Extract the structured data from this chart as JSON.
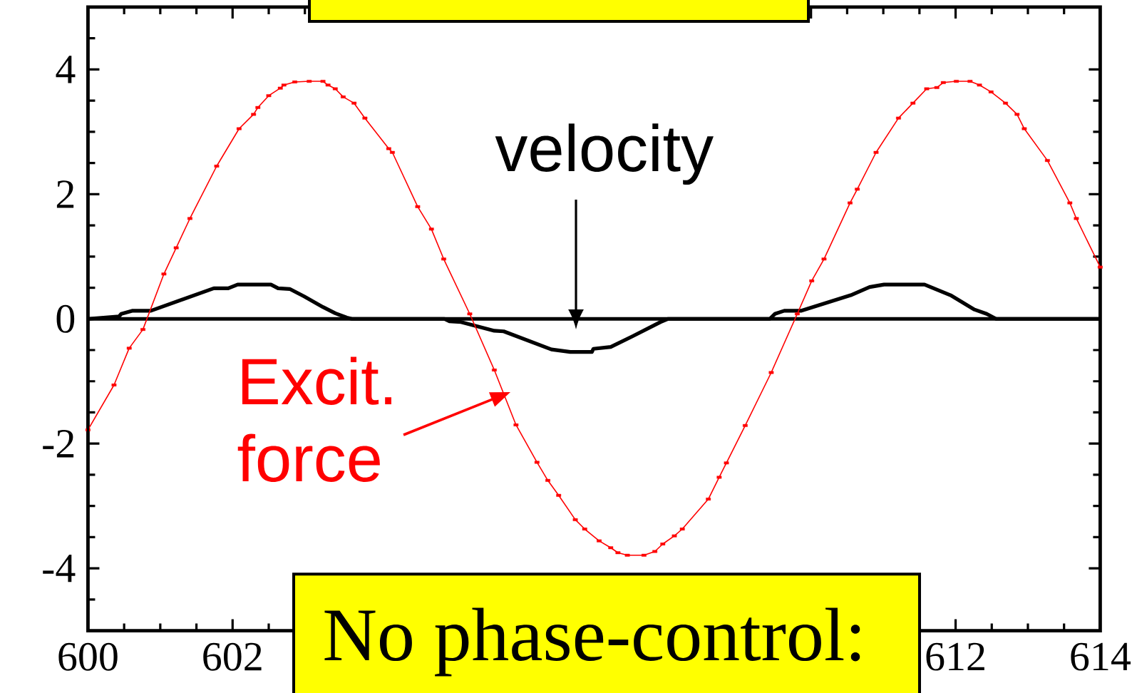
{
  "chart_data": {
    "type": "line",
    "xlim": [
      600,
      614
    ],
    "ylim": [
      -5,
      5
    ],
    "xticks": [
      600,
      602,
      {
        "value": 604,
        "label": null
      },
      {
        "value": 606,
        "label": null
      },
      {
        "value": 608,
        "label": null
      },
      {
        "value": 610,
        "label": null
      },
      612,
      614
    ],
    "yticks": [
      -4,
      -2,
      0,
      2,
      4
    ],
    "ref_lines": [
      {
        "axis": "y",
        "value": 0,
        "color": "#000000"
      }
    ],
    "series": [
      {
        "name": "velocity",
        "type": "line",
        "color": "#000000",
        "marker": "none",
        "x": [
          600.0,
          600.43,
          600.46,
          600.61,
          600.87,
          601.74,
          601.94,
          602.07,
          602.53,
          602.63,
          602.79,
          602.99,
          603.25,
          603.42,
          603.58,
          603.65,
          604.93,
          605.0,
          605.16,
          605.62,
          605.75,
          606.41,
          606.67,
          606.97,
          606.99,
          607.23,
          607.53,
          607.92,
          608.02,
          609.43,
          609.5,
          609.63,
          609.86,
          610.55,
          610.81,
          611.01,
          611.57,
          611.93,
          612.26,
          612.43,
          612.56,
          614.0
        ],
        "values": [
          0,
          0.04,
          0.08,
          0.13,
          0.13,
          0.49,
          0.49,
          0.55,
          0.55,
          0.49,
          0.48,
          0.36,
          0.19,
          0.09,
          0.02,
          0,
          0,
          -0.04,
          -0.05,
          -0.19,
          -0.2,
          -0.49,
          -0.53,
          -0.53,
          -0.48,
          -0.45,
          -0.28,
          -0.05,
          0,
          0,
          0.08,
          0.13,
          0.13,
          0.38,
          0.51,
          0.55,
          0.55,
          0.38,
          0.15,
          0.08,
          0,
          0
        ]
      },
      {
        "name": "Excit. force",
        "type": "line",
        "color": "#ff0000",
        "marker": "square",
        "x": [
          600.0,
          600.36,
          600.57,
          600.76,
          601.05,
          601.22,
          601.41,
          601.78,
          602.09,
          602.29,
          602.35,
          602.5,
          602.66,
          602.71,
          602.86,
          603.06,
          603.25,
          603.32,
          603.42,
          603.53,
          603.68,
          603.83,
          604.16,
          604.21,
          604.56,
          604.75,
          604.92,
          605.28,
          605.62,
          605.92,
          606.21,
          606.36,
          606.51,
          606.74,
          606.87,
          607.07,
          607.23,
          607.33,
          607.46,
          607.69,
          607.84,
          607.95,
          608.11,
          608.22,
          608.58,
          608.73,
          608.83,
          609.09,
          609.45,
          609.81,
          610.01,
          610.18,
          610.54,
          610.64,
          610.9,
          611.21,
          611.41,
          611.6,
          611.74,
          611.83,
          612.01,
          612.2,
          612.33,
          612.49,
          612.69,
          612.85,
          612.95,
          613.27,
          613.58,
          613.67,
          614.0
        ],
        "values": [
          -1.78,
          -1.06,
          -0.47,
          -0.17,
          0.72,
          1.14,
          1.61,
          2.45,
          3.05,
          3.28,
          3.39,
          3.58,
          3.7,
          3.75,
          3.8,
          3.81,
          3.81,
          3.75,
          3.69,
          3.56,
          3.46,
          3.22,
          2.73,
          2.67,
          1.8,
          1.44,
          0.96,
          0.08,
          -0.82,
          -1.7,
          -2.3,
          -2.59,
          -2.83,
          -3.22,
          -3.37,
          -3.56,
          -3.67,
          -3.75,
          -3.79,
          -3.79,
          -3.73,
          -3.61,
          -3.48,
          -3.37,
          -2.89,
          -2.54,
          -2.31,
          -1.71,
          -0.86,
          0.08,
          0.61,
          0.96,
          1.86,
          2.08,
          2.67,
          3.22,
          3.46,
          3.69,
          3.71,
          3.79,
          3.81,
          3.81,
          3.75,
          3.64,
          3.46,
          3.28,
          3.05,
          2.54,
          1.86,
          1.61,
          0.83
        ]
      }
    ],
    "annotations": [
      "No phase-control:"
    ]
  }
}
